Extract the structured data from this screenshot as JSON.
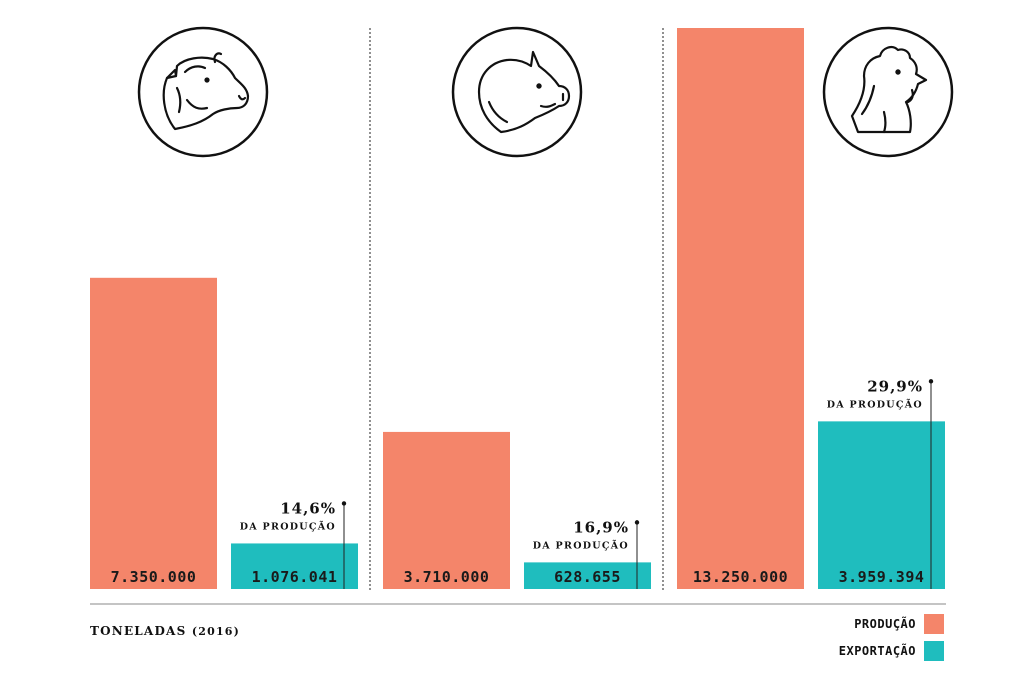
{
  "chart_data": {
    "type": "bar",
    "title": "",
    "unit_label": "TONELADAS",
    "unit_year": "(2016)",
    "categories": [
      "bovino",
      "suíno",
      "frango"
    ],
    "category_icons": [
      "cow-icon",
      "pig-icon",
      "chicken-icon"
    ],
    "series": [
      {
        "name": "PRODUÇÃO",
        "color": "#f4856a",
        "values": [
          7350000,
          3710000,
          13250000
        ],
        "labels": [
          "7.350.000",
          "3.710.000",
          "13.250.000"
        ]
      },
      {
        "name": "EXPORTAÇÃO",
        "color": "#1fbdbe",
        "values": [
          1076041,
          628655,
          3959394
        ],
        "labels": [
          "1.076.041",
          "628.655",
          "3.959.394"
        ]
      }
    ],
    "export_share": [
      "14,6%",
      "16,9%",
      "29,9%"
    ],
    "export_share_caption": "DA PRODUÇÃO",
    "ylim": [
      0,
      13250000
    ],
    "grid": false,
    "legend": "bottom-right"
  },
  "legend": {
    "production": "PRODUÇÃO",
    "export": "EXPORTAÇÃO"
  }
}
